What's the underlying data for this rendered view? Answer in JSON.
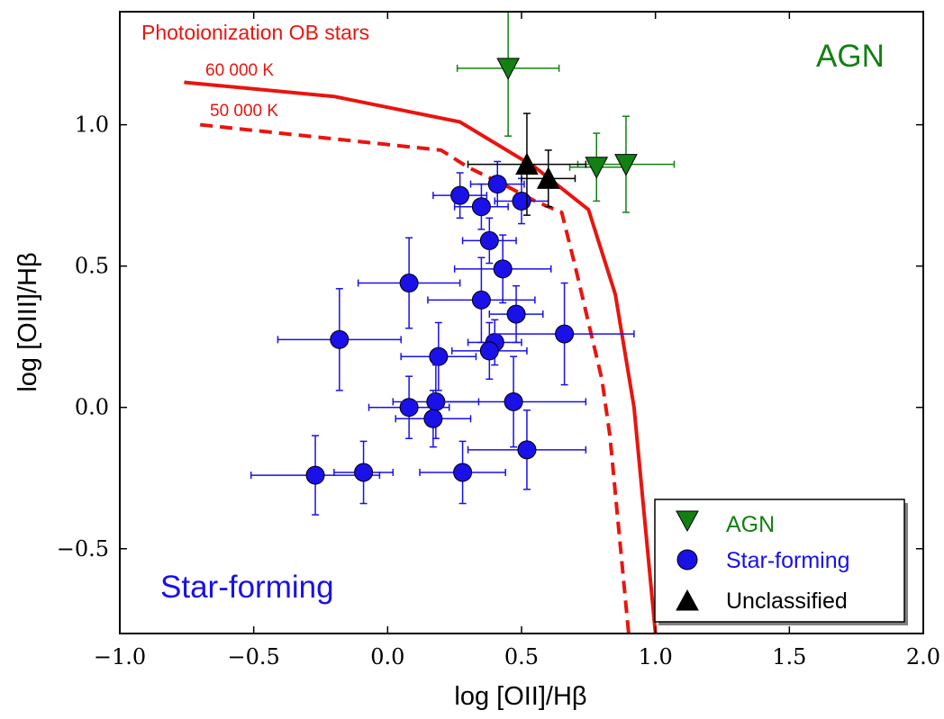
{
  "chart_data": {
    "type": "scatter",
    "xlabel": "log [OII]/Hβ",
    "ylabel": "log [OIII]/Hβ",
    "xlim": [
      -1.0,
      2.0
    ],
    "ylim": [
      -0.8,
      1.4
    ],
    "xticks": [
      -1.0,
      -0.5,
      0.0,
      0.5,
      1.0,
      1.5,
      2.0
    ],
    "xtick_labels": [
      "−1.0",
      "−0.5",
      "0.0",
      "0.5",
      "1.0",
      "1.5",
      "2.0"
    ],
    "yticks": [
      -0.5,
      0.0,
      0.5,
      1.0
    ],
    "ytick_labels": [
      "−0.5",
      "0.0",
      "0.5",
      "1.0"
    ],
    "grid": false,
    "annotations": {
      "title_curves": "Photoionization OB stars",
      "curve_60000": "60 000 K",
      "curve_50000": "50 000 K",
      "region_agn": "AGN",
      "region_sf": "Star-forming"
    },
    "colors": {
      "agn": "#128012",
      "sf": "#1a10e8",
      "unclassified": "#000000",
      "curves": "#e8150f"
    },
    "curves": [
      {
        "name": "60 000 K",
        "style": "solid",
        "x": [
          -0.76,
          -0.2,
          0.27,
          0.55,
          0.75,
          0.85,
          0.92,
          0.96,
          1.0
        ],
        "y": [
          1.15,
          1.1,
          1.01,
          0.85,
          0.7,
          0.4,
          0.0,
          -0.4,
          -0.8
        ]
      },
      {
        "name": "50 000 K",
        "style": "dashed",
        "x": [
          -0.7,
          0.2,
          0.3,
          0.45,
          0.55,
          0.65,
          0.7,
          0.75,
          0.8,
          0.83,
          0.86,
          0.9
        ],
        "y": [
          1.0,
          0.91,
          0.85,
          0.78,
          0.73,
          0.69,
          0.5,
          0.3,
          0.1,
          -0.1,
          -0.4,
          -0.8
        ]
      }
    ],
    "series": [
      {
        "name": "AGN",
        "marker": "triangle-down",
        "points": [
          {
            "x": 0.45,
            "y": 1.2,
            "xerr": 0.19,
            "yerr": 0.24
          },
          {
            "x": 0.78,
            "y": 0.85,
            "xerr": 0.1,
            "yerr": 0.12
          },
          {
            "x": 0.89,
            "y": 0.86,
            "xerr": 0.18,
            "yerr": 0.17
          }
        ]
      },
      {
        "name": "Star-forming",
        "marker": "circle",
        "points": [
          {
            "x": 0.27,
            "y": 0.75,
            "xerr": 0.1,
            "yerr": 0.08
          },
          {
            "x": 0.41,
            "y": 0.79,
            "xerr": 0.1,
            "yerr": 0.08
          },
          {
            "x": 0.35,
            "y": 0.71,
            "xerr": 0.1,
            "yerr": 0.08
          },
          {
            "x": 0.5,
            "y": 0.73,
            "xerr": 0.1,
            "yerr": 0.08
          },
          {
            "x": 0.38,
            "y": 0.59,
            "xerr": 0.1,
            "yerr": 0.08
          },
          {
            "x": 0.43,
            "y": 0.49,
            "xerr": 0.18,
            "yerr": 0.12
          },
          {
            "x": 0.08,
            "y": 0.44,
            "xerr": 0.19,
            "yerr": 0.16
          },
          {
            "x": 0.35,
            "y": 0.38,
            "xerr": 0.2,
            "yerr": 0.15
          },
          {
            "x": 0.48,
            "y": 0.33,
            "xerr": 0.1,
            "yerr": 0.1
          },
          {
            "x": -0.18,
            "y": 0.24,
            "xerr": 0.23,
            "yerr": 0.18
          },
          {
            "x": 0.4,
            "y": 0.23,
            "xerr": 0.1,
            "yerr": 0.08
          },
          {
            "x": 0.66,
            "y": 0.26,
            "xerr": 0.26,
            "yerr": 0.18
          },
          {
            "x": 0.38,
            "y": 0.2,
            "xerr": 0.14,
            "yerr": 0.1
          },
          {
            "x": 0.19,
            "y": 0.18,
            "xerr": 0.14,
            "yerr": 0.12
          },
          {
            "x": 0.08,
            "y": 0.0,
            "xerr": 0.15,
            "yerr": 0.11
          },
          {
            "x": 0.18,
            "y": 0.02,
            "xerr": 0.16,
            "yerr": 0.13
          },
          {
            "x": 0.47,
            "y": 0.02,
            "xerr": 0.27,
            "yerr": 0.16
          },
          {
            "x": 0.17,
            "y": -0.04,
            "xerr": 0.14,
            "yerr": 0.1
          },
          {
            "x": 0.52,
            "y": -0.15,
            "xerr": 0.22,
            "yerr": 0.14
          },
          {
            "x": -0.27,
            "y": -0.24,
            "xerr": 0.24,
            "yerr": 0.14
          },
          {
            "x": -0.09,
            "y": -0.23,
            "xerr": 0.11,
            "yerr": 0.11
          },
          {
            "x": 0.28,
            "y": -0.23,
            "xerr": 0.16,
            "yerr": 0.11
          }
        ]
      },
      {
        "name": "Unclassified",
        "marker": "triangle-up",
        "points": [
          {
            "x": 0.52,
            "y": 0.86,
            "xerr": 0.22,
            "yerr": 0.18
          },
          {
            "x": 0.6,
            "y": 0.81,
            "xerr": 0.1,
            "yerr": 0.1
          }
        ]
      }
    ],
    "legend": {
      "position": "bottom-right",
      "entries": [
        "AGN",
        "Star-forming",
        "Unclassified"
      ]
    }
  }
}
